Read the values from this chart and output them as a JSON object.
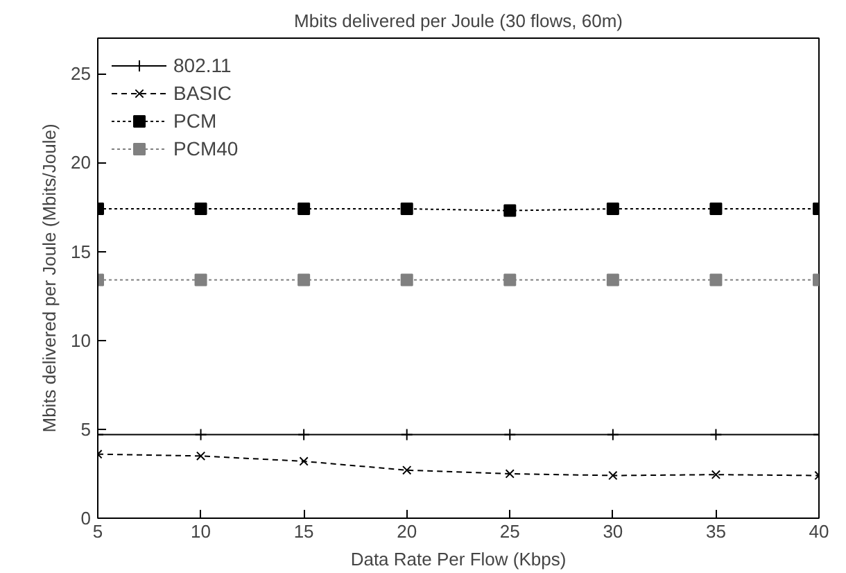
{
  "chart_data": {
    "type": "line",
    "title": "Mbits delivered per Joule (30 flows, 60m)",
    "xlabel": "Data Rate Per Flow (Kbps)",
    "ylabel": "Mbits delivered per Joule (Mbits/Joule)",
    "x": [
      5,
      10,
      15,
      20,
      25,
      30,
      35,
      40
    ],
    "xlim": [
      5,
      40
    ],
    "xticks": [
      5,
      10,
      15,
      20,
      25,
      30,
      35,
      40
    ],
    "ylim": [
      0,
      27
    ],
    "yticks": [
      0,
      5,
      10,
      15,
      20,
      25
    ],
    "grid": false,
    "legend": "top left",
    "series": [
      {
        "name": "802.11",
        "color": "#000000",
        "marker": "cross",
        "line_style": "solid",
        "values": [
          4.7,
          4.7,
          4.7,
          4.7,
          4.7,
          4.7,
          4.7,
          4.7
        ]
      },
      {
        "name": "BASIC",
        "color": "#000000",
        "marker": "x",
        "line_style": "dashed",
        "values": [
          3.6,
          3.5,
          3.2,
          2.7,
          2.5,
          2.4,
          2.45,
          2.4
        ]
      },
      {
        "name": "PCM",
        "color": "#000000",
        "marker": "square",
        "line_style": "dotted",
        "values": [
          17.4,
          17.4,
          17.4,
          17.4,
          17.3,
          17.4,
          17.4,
          17.4
        ]
      },
      {
        "name": "PCM40",
        "color": "#808080",
        "marker": "square",
        "line_style": "dotted",
        "values": [
          13.4,
          13.4,
          13.4,
          13.4,
          13.4,
          13.4,
          13.4,
          13.4
        ]
      }
    ]
  }
}
